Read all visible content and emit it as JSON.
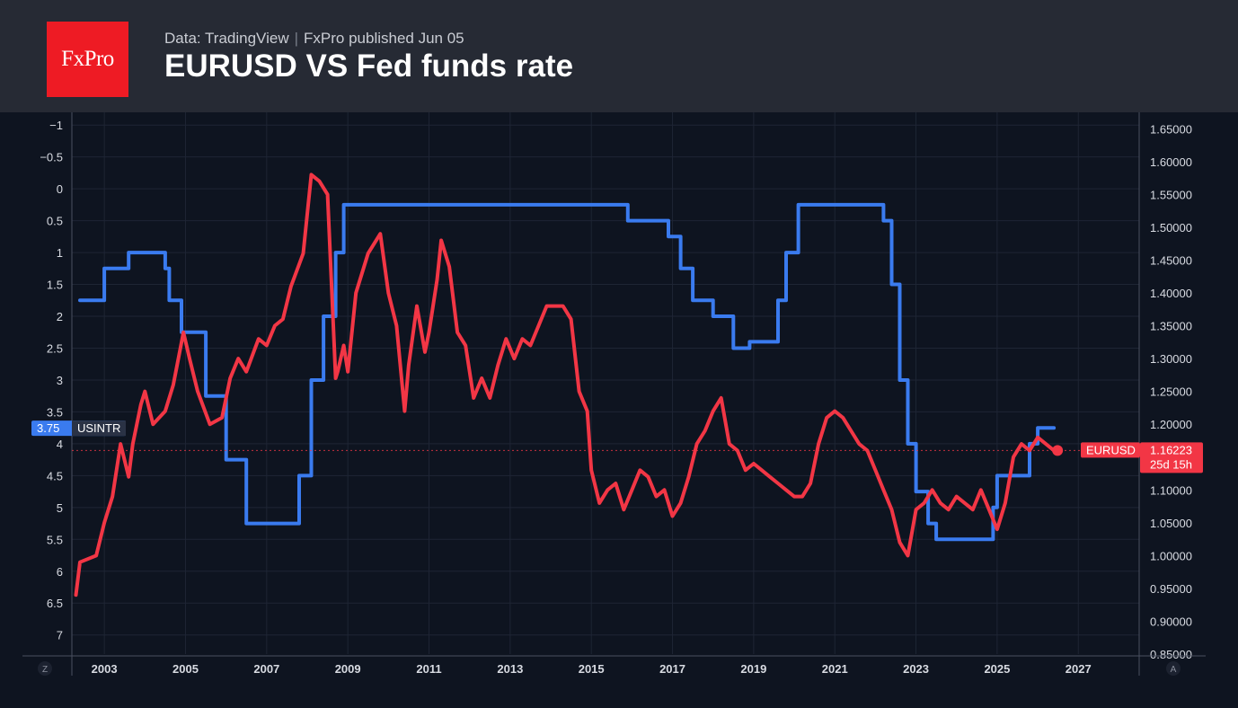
{
  "header": {
    "logo_text": "FxPro",
    "source": "Data: TradingView",
    "separator": "|",
    "published": "FxPro published Jun 05",
    "title": "EURUSD VS Fed funds rate"
  },
  "axis_corner": {
    "left": "Z",
    "right": "A"
  },
  "labels": {
    "usintr_value": "3.75",
    "usintr_name": "USINTR",
    "eurusd_name": "EURUSD",
    "eurusd_value": "1.16223",
    "eurusd_countdown": "25d 15h"
  },
  "colors": {
    "usintr": "#3a7bef",
    "eurusd": "#f23645",
    "background": "#0e1420",
    "header": "#262a34",
    "logo": "#ee1b24"
  },
  "chart_data": {
    "type": "line",
    "title": "EURUSD VS Fed funds rate",
    "xlim": [
      2002.2,
      2028.5
    ],
    "x_ticks": [
      "2003",
      "2005",
      "2007",
      "2009",
      "2011",
      "2013",
      "2015",
      "2017",
      "2019",
      "2021",
      "2023",
      "2025",
      "2027"
    ],
    "left_axis": {
      "label": "USINTR",
      "inverted": true,
      "ylim": [
        -1.2,
        7.3
      ],
      "ticks": [
        "-1",
        "-0.5",
        "0",
        "0.5",
        "1",
        "1.5",
        "2",
        "2.5",
        "3",
        "3.5",
        "4",
        "4.5",
        "5",
        "5.5",
        "6",
        "6.5",
        "7"
      ]
    },
    "right_axis": {
      "label": "EURUSD",
      "ylim": [
        0.85,
        1.675
      ],
      "ticks": [
        "1.65000",
        "1.60000",
        "1.55000",
        "1.50000",
        "1.45000",
        "1.40000",
        "1.35000",
        "1.30000",
        "1.25000",
        "1.20000",
        "1.15000",
        "1.10000",
        "1.05000",
        "1.00000",
        "0.95000",
        "0.90000",
        "0.85000"
      ]
    },
    "grid": true,
    "series": [
      {
        "name": "USINTR",
        "axis": "left",
        "color": "#3a7bef",
        "step": true,
        "x": [
          2002.4,
          2003.0,
          2003.6,
          2004.5,
          2004.6,
          2004.9,
          2005.5,
          2006.0,
          2006.5,
          2007.6,
          2007.8,
          2008.1,
          2008.4,
          2008.7,
          2008.9,
          2009.0,
          2015.9,
          2016.9,
          2017.2,
          2017.5,
          2018.0,
          2018.5,
          2018.9,
          2019.4,
          2019.6,
          2019.8,
          2020.1,
          2020.2,
          2022.2,
          2022.4,
          2022.6,
          2022.8,
          2023.0,
          2023.3,
          2023.5,
          2024.6,
          2024.9,
          2025.0,
          2025.7,
          2025.8,
          2026.0,
          2026.4
        ],
        "y": [
          1.75,
          1.25,
          1.0,
          1.25,
          1.75,
          2.25,
          3.25,
          4.25,
          5.25,
          5.25,
          4.5,
          3.0,
          2.0,
          1.0,
          0.25,
          0.25,
          0.5,
          0.75,
          1.25,
          1.75,
          2.0,
          2.5,
          2.4,
          2.4,
          1.75,
          1.0,
          0.25,
          0.25,
          0.5,
          1.5,
          3.0,
          4.0,
          4.75,
          5.25,
          5.5,
          5.5,
          5.0,
          4.5,
          4.5,
          4.0,
          3.75,
          3.75
        ]
      },
      {
        "name": "EURUSD",
        "axis": "right",
        "color": "#f23645",
        "step": false,
        "x": [
          2002.3,
          2002.4,
          2002.8,
          2003.0,
          2003.2,
          2003.4,
          2003.6,
          2003.7,
          2003.9,
          2004.0,
          2004.2,
          2004.5,
          2004.7,
          2004.95,
          2005.1,
          2005.3,
          2005.6,
          2005.9,
          2006.1,
          2006.3,
          2006.5,
          2006.8,
          2007.0,
          2007.2,
          2007.4,
          2007.6,
          2007.9,
          2008.1,
          2008.3,
          2008.5,
          2008.7,
          2008.75,
          2008.9,
          2009.0,
          2009.2,
          2009.5,
          2009.8,
          2010.0,
          2010.2,
          2010.4,
          2010.5,
          2010.7,
          2010.9,
          2011.0,
          2011.2,
          2011.3,
          2011.5,
          2011.7,
          2011.9,
          2012.1,
          2012.3,
          2012.5,
          2012.7,
          2012.9,
          2013.1,
          2013.3,
          2013.5,
          2013.7,
          2013.9,
          2014.1,
          2014.3,
          2014.5,
          2014.7,
          2014.9,
          2015.0,
          2015.2,
          2015.4,
          2015.6,
          2015.8,
          2016.0,
          2016.2,
          2016.4,
          2016.6,
          2016.8,
          2017.0,
          2017.2,
          2017.4,
          2017.6,
          2017.8,
          2018.0,
          2018.2,
          2018.4,
          2018.6,
          2018.8,
          2019.0,
          2019.2,
          2019.4,
          2019.6,
          2019.8,
          2020.0,
          2020.2,
          2020.4,
          2020.6,
          2020.8,
          2021.0,
          2021.2,
          2021.4,
          2021.6,
          2021.8,
          2022.0,
          2022.2,
          2022.4,
          2022.6,
          2022.8,
          2023.0,
          2023.2,
          2023.4,
          2023.6,
          2023.8,
          2024.0,
          2024.2,
          2024.4,
          2024.6,
          2024.8,
          2025.0,
          2025.2,
          2025.4,
          2025.6,
          2025.8,
          2026.0,
          2026.2,
          2026.4
        ],
        "y": [
          0.94,
          0.99,
          1.0,
          1.05,
          1.09,
          1.17,
          1.12,
          1.17,
          1.23,
          1.25,
          1.2,
          1.22,
          1.26,
          1.34,
          1.3,
          1.25,
          1.2,
          1.21,
          1.27,
          1.3,
          1.28,
          1.33,
          1.32,
          1.35,
          1.36,
          1.41,
          1.46,
          1.58,
          1.57,
          1.55,
          1.27,
          1.28,
          1.32,
          1.28,
          1.4,
          1.46,
          1.49,
          1.4,
          1.35,
          1.22,
          1.29,
          1.38,
          1.31,
          1.34,
          1.42,
          1.48,
          1.44,
          1.34,
          1.32,
          1.24,
          1.27,
          1.24,
          1.29,
          1.33,
          1.3,
          1.33,
          1.32,
          1.35,
          1.38,
          1.38,
          1.38,
          1.36,
          1.25,
          1.22,
          1.13,
          1.08,
          1.1,
          1.11,
          1.07,
          1.1,
          1.13,
          1.12,
          1.09,
          1.1,
          1.06,
          1.08,
          1.12,
          1.17,
          1.19,
          1.22,
          1.24,
          1.17,
          1.16,
          1.13,
          1.14,
          1.13,
          1.12,
          1.11,
          1.1,
          1.09,
          1.09,
          1.11,
          1.17,
          1.21,
          1.22,
          1.21,
          1.19,
          1.17,
          1.16,
          1.13,
          1.1,
          1.07,
          1.02,
          1.0,
          1.07,
          1.08,
          1.1,
          1.08,
          1.07,
          1.09,
          1.08,
          1.07,
          1.1,
          1.07,
          1.04,
          1.08,
          1.15,
          1.17,
          1.16,
          1.18,
          1.17,
          1.16
        ]
      }
    ],
    "annotations": [
      "3.75 USINTR",
      "EURUSD 1.16223",
      "25d 15h"
    ]
  }
}
